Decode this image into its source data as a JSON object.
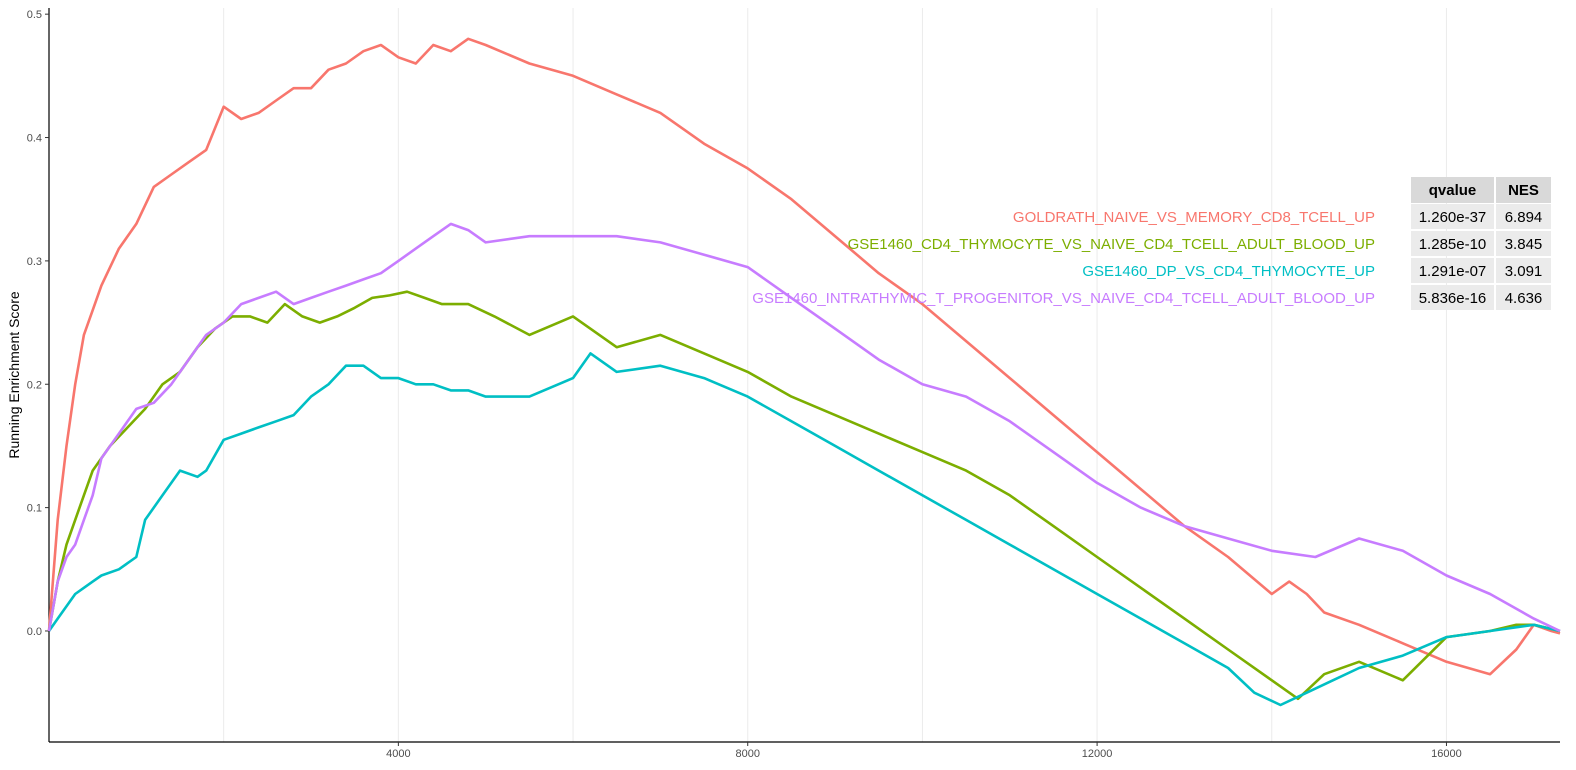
{
  "chart_data": {
    "type": "line",
    "title": "",
    "xlabel": "",
    "ylabel": "Running Enrichment Score",
    "xlim": [
      0,
      17300
    ],
    "ylim": [
      -0.09,
      0.505
    ],
    "x_ticks": [
      4000,
      8000,
      12000,
      16000
    ],
    "y_ticks": [
      0.0,
      0.1,
      0.2,
      0.3,
      0.4,
      0.5
    ],
    "x_tick_labels": [
      "4000",
      "8000",
      "12000",
      "16000"
    ],
    "y_tick_labels": [
      "0.0",
      "0.1",
      "0.2",
      "0.3",
      "0.4",
      "0.5"
    ],
    "grid": "vertical",
    "legend_placement": "right, inside plot",
    "table": {
      "headers": [
        "qvalue",
        "NES"
      ],
      "header_bg": "#d9d9d9",
      "row_bg": "#ebebeb"
    },
    "series": [
      {
        "name": "GOLDRATH_NAIVE_VS_MEMORY_CD8_TCELL_UP",
        "color": "#F8766D",
        "qvalue": "1.260e-37",
        "NES": "6.894",
        "x": [
          0,
          100,
          200,
          300,
          400,
          500,
          600,
          800,
          1000,
          1200,
          1400,
          1600,
          1800,
          2000,
          2200,
          2400,
          2600,
          2800,
          3000,
          3200,
          3400,
          3600,
          3800,
          4000,
          4200,
          4400,
          4600,
          4800,
          5000,
          5500,
          6000,
          6500,
          7000,
          7500,
          8000,
          8500,
          9000,
          9500,
          10000,
          10500,
          11000,
          11500,
          12000,
          12500,
          13000,
          13500,
          14000,
          14200,
          14400,
          14600,
          15000,
          15500,
          16000,
          16500,
          16800,
          17000,
          17200,
          17300
        ],
        "y": [
          0.0,
          0.09,
          0.15,
          0.2,
          0.24,
          0.26,
          0.28,
          0.31,
          0.33,
          0.36,
          0.37,
          0.38,
          0.39,
          0.425,
          0.415,
          0.42,
          0.43,
          0.44,
          0.44,
          0.455,
          0.46,
          0.47,
          0.475,
          0.465,
          0.46,
          0.475,
          0.47,
          0.48,
          0.475,
          0.46,
          0.45,
          0.435,
          0.42,
          0.395,
          0.375,
          0.35,
          0.32,
          0.29,
          0.265,
          0.235,
          0.205,
          0.175,
          0.145,
          0.115,
          0.085,
          0.06,
          0.03,
          0.04,
          0.03,
          0.015,
          0.005,
          -0.01,
          -0.025,
          -0.035,
          -0.015,
          0.005,
          0.0,
          -0.002
        ]
      },
      {
        "name": "GSE1460_CD4_THYMOCYTE_VS_NAIVE_CD4_TCELL_ADULT_BLOOD_UP",
        "color": "#7CAE00",
        "qvalue": "1.285e-10",
        "NES": "3.845",
        "x": [
          0,
          100,
          200,
          300,
          400,
          500,
          700,
          900,
          1100,
          1300,
          1500,
          1700,
          1900,
          2100,
          2300,
          2500,
          2700,
          2900,
          3100,
          3300,
          3500,
          3700,
          3900,
          4100,
          4300,
          4500,
          4800,
          5100,
          5500,
          6000,
          6500,
          7000,
          7500,
          8000,
          8500,
          9000,
          9500,
          10000,
          10500,
          11000,
          11500,
          12000,
          12500,
          13000,
          13500,
          14000,
          14300,
          14600,
          15000,
          15500,
          16000,
          16500,
          16800,
          17000,
          17300
        ],
        "y": [
          0.0,
          0.04,
          0.07,
          0.09,
          0.11,
          0.13,
          0.15,
          0.165,
          0.18,
          0.2,
          0.21,
          0.23,
          0.245,
          0.255,
          0.255,
          0.25,
          0.265,
          0.255,
          0.25,
          0.255,
          0.262,
          0.27,
          0.272,
          0.275,
          0.27,
          0.265,
          0.265,
          0.255,
          0.24,
          0.255,
          0.23,
          0.24,
          0.225,
          0.21,
          0.19,
          0.175,
          0.16,
          0.145,
          0.13,
          0.11,
          0.085,
          0.06,
          0.035,
          0.01,
          -0.015,
          -0.04,
          -0.055,
          -0.035,
          -0.025,
          -0.04,
          -0.005,
          0.0,
          0.005,
          0.005,
          0.0
        ]
      },
      {
        "name": "GSE1460_DP_VS_CD4_THYMOCYTE_UP",
        "color": "#00BFC4",
        "qvalue": "1.291e-07",
        "NES": "3.091",
        "x": [
          0,
          100,
          200,
          300,
          400,
          500,
          600,
          800,
          1000,
          1100,
          1300,
          1500,
          1700,
          1800,
          2000,
          2200,
          2400,
          2600,
          2800,
          3000,
          3200,
          3400,
          3600,
          3800,
          4000,
          4200,
          4400,
          4600,
          4800,
          5000,
          5500,
          6000,
          6200,
          6500,
          7000,
          7500,
          8000,
          8500,
          9000,
          9500,
          10000,
          10500,
          11000,
          11500,
          12000,
          12500,
          13000,
          13500,
          13800,
          14100,
          14400,
          14700,
          15000,
          15500,
          16000,
          16500,
          17000,
          17300
        ],
        "y": [
          0.0,
          0.01,
          0.02,
          0.03,
          0.035,
          0.04,
          0.045,
          0.05,
          0.06,
          0.09,
          0.11,
          0.13,
          0.125,
          0.13,
          0.155,
          0.16,
          0.165,
          0.17,
          0.175,
          0.19,
          0.2,
          0.215,
          0.215,
          0.205,
          0.205,
          0.2,
          0.2,
          0.195,
          0.195,
          0.19,
          0.19,
          0.205,
          0.225,
          0.21,
          0.215,
          0.205,
          0.19,
          0.17,
          0.15,
          0.13,
          0.11,
          0.09,
          0.07,
          0.05,
          0.03,
          0.01,
          -0.01,
          -0.03,
          -0.05,
          -0.06,
          -0.05,
          -0.04,
          -0.03,
          -0.02,
          -0.005,
          0.0,
          0.005,
          0.0
        ]
      },
      {
        "name": "GSE1460_INTRATHYMIC_T_PROGENITOR_VS_NAIVE_CD4_TCELL_ADULT_BLOOD_UP",
        "color": "#C77CFF",
        "qvalue": "5.836e-16",
        "NES": "4.636",
        "x": [
          0,
          100,
          200,
          300,
          400,
          500,
          600,
          800,
          1000,
          1200,
          1400,
          1600,
          1800,
          2000,
          2200,
          2400,
          2600,
          2800,
          3000,
          3200,
          3400,
          3600,
          3800,
          4000,
          4200,
          4400,
          4600,
          4800,
          5000,
          5500,
          6000,
          6500,
          7000,
          7500,
          8000,
          8500,
          9000,
          9500,
          10000,
          10500,
          11000,
          11500,
          12000,
          12500,
          13000,
          13500,
          14000,
          14500,
          15000,
          15500,
          16000,
          16500,
          17000,
          17300
        ],
        "y": [
          0.0,
          0.04,
          0.06,
          0.07,
          0.09,
          0.11,
          0.14,
          0.16,
          0.18,
          0.185,
          0.2,
          0.22,
          0.24,
          0.25,
          0.265,
          0.27,
          0.275,
          0.265,
          0.27,
          0.275,
          0.28,
          0.285,
          0.29,
          0.3,
          0.31,
          0.32,
          0.33,
          0.325,
          0.315,
          0.32,
          0.32,
          0.32,
          0.315,
          0.305,
          0.295,
          0.27,
          0.245,
          0.22,
          0.2,
          0.19,
          0.17,
          0.145,
          0.12,
          0.1,
          0.085,
          0.075,
          0.065,
          0.06,
          0.075,
          0.065,
          0.045,
          0.03,
          0.01,
          0.0
        ]
      }
    ]
  }
}
